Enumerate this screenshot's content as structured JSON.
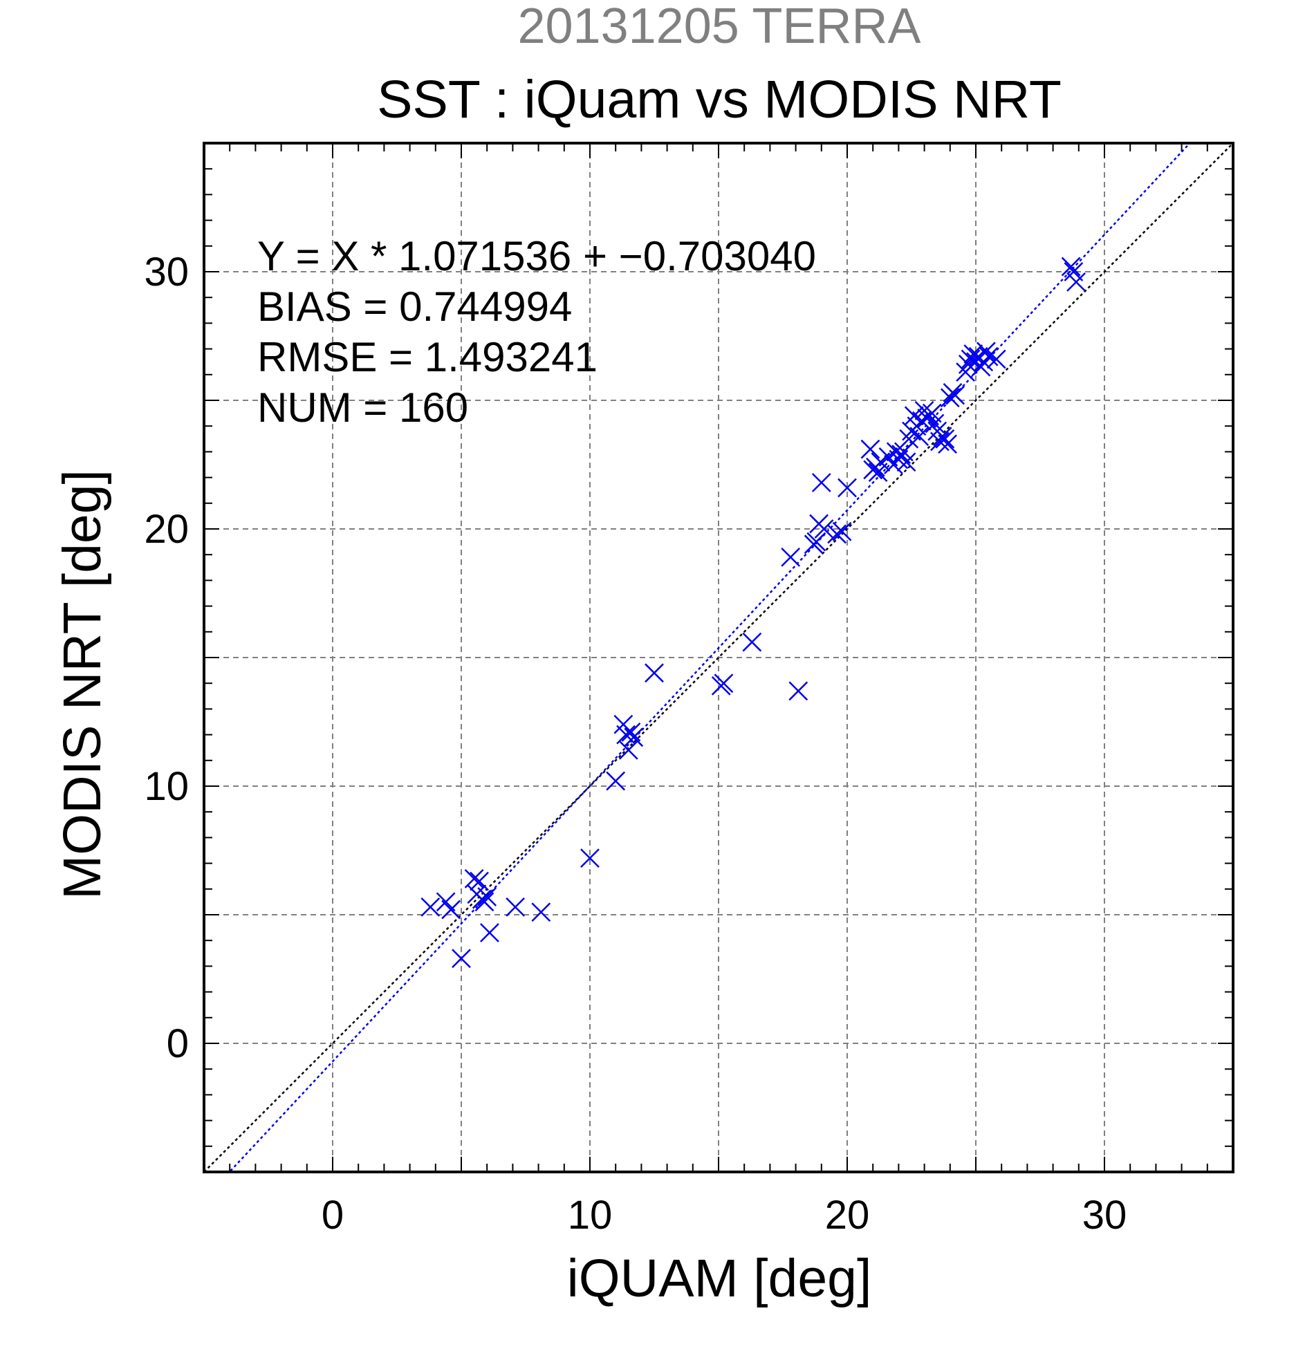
{
  "chart_data": {
    "type": "scatter",
    "supertitle": "20131205 TERRA",
    "title": "SST : iQuam vs MODIS NRT",
    "xlabel": "iQUAM [deg]",
    "ylabel": "MODIS NRT [deg]",
    "xlim": [
      -5,
      35
    ],
    "ylim": [
      -5,
      35
    ],
    "xticks": [
      0,
      10,
      20,
      30
    ],
    "yticks": [
      0,
      10,
      20,
      30
    ],
    "grid_step": 5,
    "minor_tick_step": 1,
    "grid": true,
    "colors": {
      "points": "#0000ee",
      "regression": "#0000ee",
      "identity": "#000000",
      "supertitle": "#808080"
    },
    "stats": [
      "Y = X * 1.071536 + −0.703040",
      "BIAS = 0.744994",
      "RMSE = 1.493241",
      "NUM = 160"
    ],
    "regression": {
      "slope": 1.071536,
      "intercept": -0.70304,
      "style": "dotted",
      "color": "#0000ee"
    },
    "identity_line": {
      "slope": 1,
      "intercept": 0,
      "style": "dotted",
      "color": "#000000"
    },
    "marker": "x",
    "points": [
      [
        3.8,
        5.3
      ],
      [
        4.4,
        5.5
      ],
      [
        4.6,
        5.2
      ],
      [
        5.0,
        3.3
      ],
      [
        5.5,
        6.4
      ],
      [
        5.7,
        6.3
      ],
      [
        5.6,
        5.8
      ],
      [
        5.8,
        5.6
      ],
      [
        5.9,
        5.5
      ],
      [
        6.0,
        5.7
      ],
      [
        6.1,
        4.3
      ],
      [
        7.1,
        5.3
      ],
      [
        8.1,
        5.1
      ],
      [
        10.0,
        7.2
      ],
      [
        11.0,
        10.2
      ],
      [
        11.3,
        12.4
      ],
      [
        11.4,
        12.0
      ],
      [
        11.5,
        11.4
      ],
      [
        11.6,
        12.1
      ],
      [
        11.7,
        11.9
      ],
      [
        12.5,
        14.4
      ],
      [
        15.1,
        13.9
      ],
      [
        15.2,
        14.0
      ],
      [
        16.3,
        15.6
      ],
      [
        17.8,
        18.9
      ],
      [
        18.1,
        13.7
      ],
      [
        18.7,
        19.4
      ],
      [
        18.8,
        19.5
      ],
      [
        18.9,
        20.2
      ],
      [
        19.0,
        21.8
      ],
      [
        19.1,
        20.0
      ],
      [
        19.6,
        19.8
      ],
      [
        19.8,
        19.9
      ],
      [
        20.0,
        21.6
      ],
      [
        20.9,
        23.1
      ],
      [
        21.0,
        22.3
      ],
      [
        21.1,
        22.4
      ],
      [
        21.2,
        22.2
      ],
      [
        21.3,
        22.6
      ],
      [
        21.6,
        22.8
      ],
      [
        21.8,
        22.5
      ],
      [
        21.9,
        23.0
      ],
      [
        22.0,
        22.7
      ],
      [
        22.1,
        22.9
      ],
      [
        22.2,
        23.0
      ],
      [
        22.3,
        22.6
      ],
      [
        22.4,
        23.5
      ],
      [
        22.5,
        23.8
      ],
      [
        22.6,
        24.4
      ],
      [
        22.7,
        24.0
      ],
      [
        22.8,
        23.6
      ],
      [
        22.9,
        24.2
      ],
      [
        23.0,
        24.6
      ],
      [
        23.1,
        24.3
      ],
      [
        23.2,
        24.4
      ],
      [
        23.3,
        24.5
      ],
      [
        23.4,
        24.1
      ],
      [
        23.5,
        23.8
      ],
      [
        23.6,
        23.4
      ],
      [
        23.7,
        23.6
      ],
      [
        23.8,
        23.5
      ],
      [
        23.9,
        23.3
      ],
      [
        24.0,
        25.1
      ],
      [
        24.1,
        25.3
      ],
      [
        24.2,
        25.2
      ],
      [
        24.6,
        26.1
      ],
      [
        24.7,
        26.4
      ],
      [
        24.8,
        26.6
      ],
      [
        24.9,
        26.8
      ],
      [
        25.0,
        26.5
      ],
      [
        25.1,
        26.7
      ],
      [
        25.2,
        26.3
      ],
      [
        25.3,
        26.5
      ],
      [
        25.4,
        26.9
      ],
      [
        25.5,
        26.7
      ],
      [
        25.8,
        26.6
      ],
      [
        28.7,
        30.2
      ],
      [
        28.8,
        30.0
      ],
      [
        28.9,
        29.6
      ]
    ]
  }
}
